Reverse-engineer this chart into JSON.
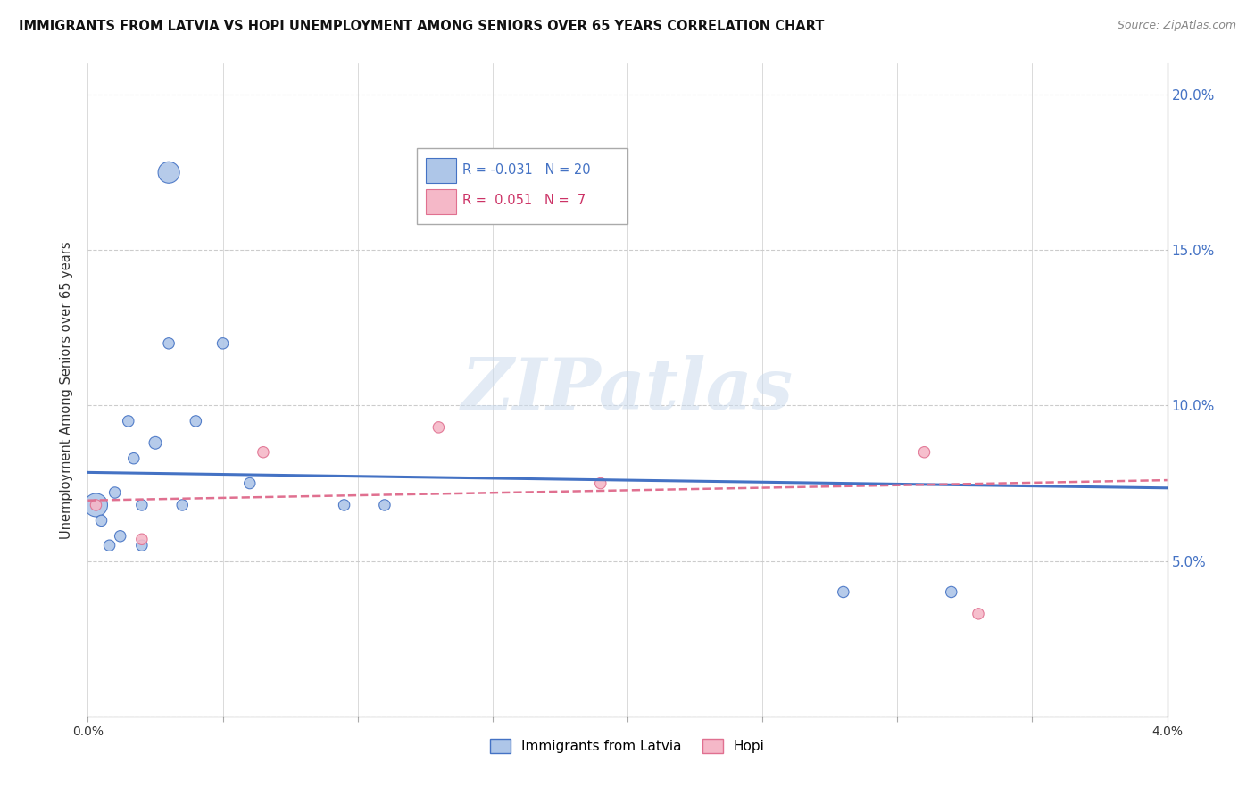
{
  "title": "IMMIGRANTS FROM LATVIA VS HOPI UNEMPLOYMENT AMONG SENIORS OVER 65 YEARS CORRELATION CHART",
  "source": "Source: ZipAtlas.com",
  "ylabel": "Unemployment Among Seniors over 65 years",
  "xlim": [
    0.0,
    0.04
  ],
  "ylim": [
    0.0,
    0.21
  ],
  "xticks": [
    0.0,
    0.005,
    0.01,
    0.015,
    0.02,
    0.025,
    0.03,
    0.035,
    0.04
  ],
  "yticks": [
    0.0,
    0.05,
    0.1,
    0.15,
    0.2
  ],
  "ytick_labels": [
    "",
    "5.0%",
    "10.0%",
    "15.0%",
    "20.0%"
  ],
  "xtick_labels": [
    "0.0%",
    "",
    "",
    "",
    "",
    "",
    "",
    "",
    "4.0%"
  ],
  "blue_R": -0.031,
  "blue_N": 20,
  "pink_R": 0.051,
  "pink_N": 7,
  "blue_color": "#aec6e8",
  "pink_color": "#f5b8c8",
  "blue_line_color": "#4472c4",
  "pink_line_color": "#e07090",
  "watermark": "ZIPatlas",
  "blue_points_x": [
    0.0003,
    0.0005,
    0.0008,
    0.001,
    0.0012,
    0.0015,
    0.0017,
    0.002,
    0.002,
    0.0025,
    0.003,
    0.003,
    0.0035,
    0.004,
    0.005,
    0.006,
    0.0095,
    0.011,
    0.028,
    0.032
  ],
  "blue_points_y": [
    0.068,
    0.063,
    0.055,
    0.072,
    0.058,
    0.095,
    0.083,
    0.068,
    0.055,
    0.088,
    0.175,
    0.12,
    0.068,
    0.095,
    0.12,
    0.075,
    0.068,
    0.068,
    0.04,
    0.04
  ],
  "blue_sizes": [
    350,
    80,
    80,
    80,
    80,
    80,
    80,
    80,
    80,
    100,
    300,
    80,
    80,
    80,
    80,
    80,
    80,
    80,
    80,
    80
  ],
  "pink_points_x": [
    0.0003,
    0.002,
    0.0065,
    0.013,
    0.019,
    0.031,
    0.033
  ],
  "pink_points_y": [
    0.068,
    0.057,
    0.085,
    0.093,
    0.075,
    0.085,
    0.033
  ],
  "pink_sizes": [
    80,
    80,
    80,
    80,
    80,
    80,
    80
  ],
  "blue_trend_y0": 0.0785,
  "blue_trend_y1": 0.0735,
  "pink_trend_y0": 0.0695,
  "pink_trend_y1": 0.076
}
